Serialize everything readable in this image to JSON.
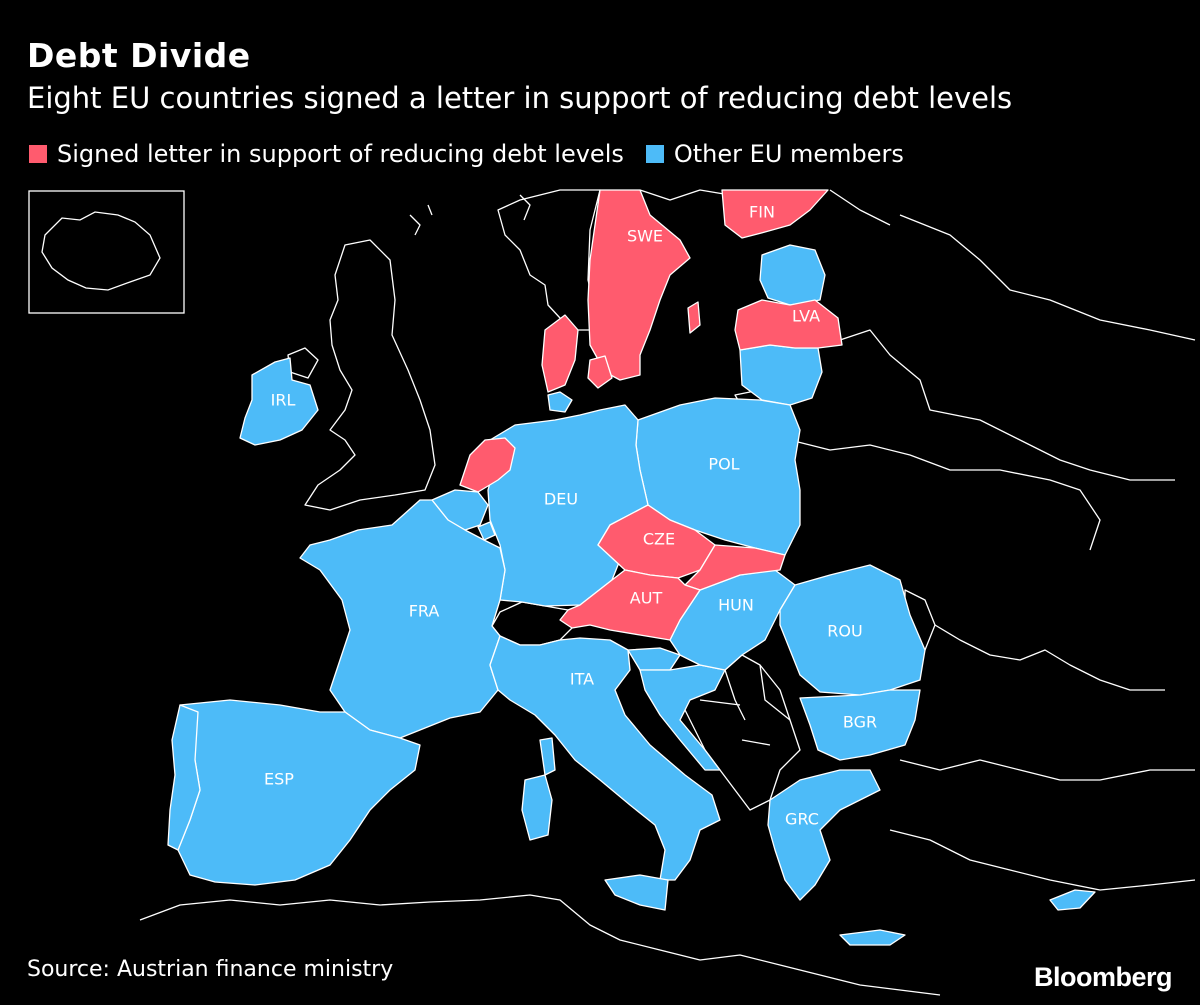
{
  "title": "Debt Divide",
  "subtitle": "Eight EU countries signed a letter in support of reducing debt levels",
  "legend": {
    "signed_label": "Signed letter in support of reducing debt levels",
    "other_label": "Other EU members"
  },
  "colors": {
    "signed": "#ff5b6e",
    "other": "#4dbbf8",
    "background": "#000000",
    "border": "#ffffff"
  },
  "country_labels": {
    "swe": "SWE",
    "fin": "FIN",
    "lva": "LVA",
    "irl": "IRL",
    "pol": "POL",
    "deu": "DEU",
    "cze": "CZE",
    "aut": "AUT",
    "hun": "HUN",
    "fra": "FRA",
    "rou": "ROU",
    "ita": "ITA",
    "bgr": "BGR",
    "esp": "ESP",
    "grc": "GRC"
  },
  "source": "Source: Austrian finance ministry",
  "brand": "Bloomberg"
}
